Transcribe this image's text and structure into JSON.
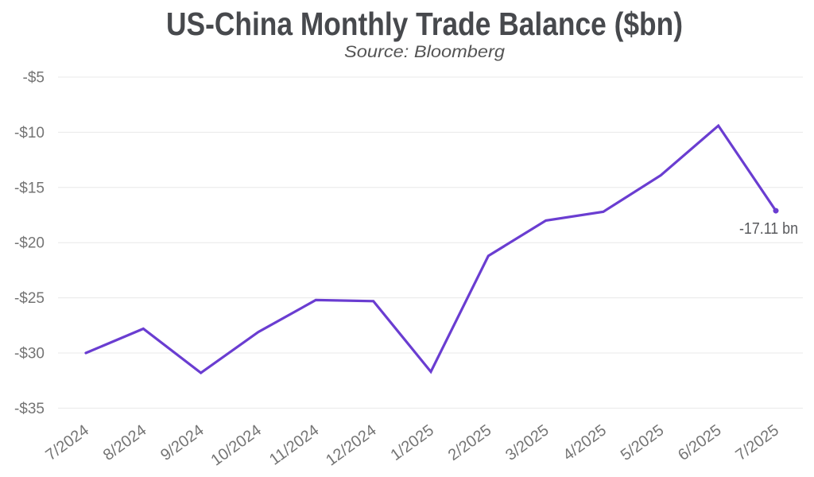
{
  "chart_data": {
    "type": "line",
    "title": "US-China Monthly Trade Balance ($bn)",
    "subtitle": "Source: Bloomberg",
    "categories": [
      "7/2024",
      "8/2024",
      "9/2024",
      "10/2024",
      "11/2024",
      "12/2024",
      "1/2025",
      "2/2025",
      "3/2025",
      "4/2025",
      "5/2025",
      "6/2025",
      "7/2025"
    ],
    "values": [
      -30.0,
      -27.8,
      -31.8,
      -28.1,
      -25.2,
      -25.3,
      -31.7,
      -21.2,
      -18.0,
      -17.2,
      -13.9,
      -9.4,
      -17.11
    ],
    "end_label": "-17.11 bn",
    "ylabel": "",
    "xlabel": "",
    "ylim": [
      -35,
      -5
    ],
    "ytick_step": 5,
    "ytick_labels": [
      "-$5",
      "-$10",
      "-$15",
      "-$20",
      "-$25",
      "-$30",
      "-$35"
    ],
    "grid": "horizontal",
    "legend": "none",
    "colors": {
      "line": "#6a3dd1",
      "grid": "#e8e8e8",
      "ticks": "#747474",
      "title": "#47494d",
      "subtitle": "#545454",
      "annotation": "#58595c",
      "background": "#ffffff"
    }
  }
}
